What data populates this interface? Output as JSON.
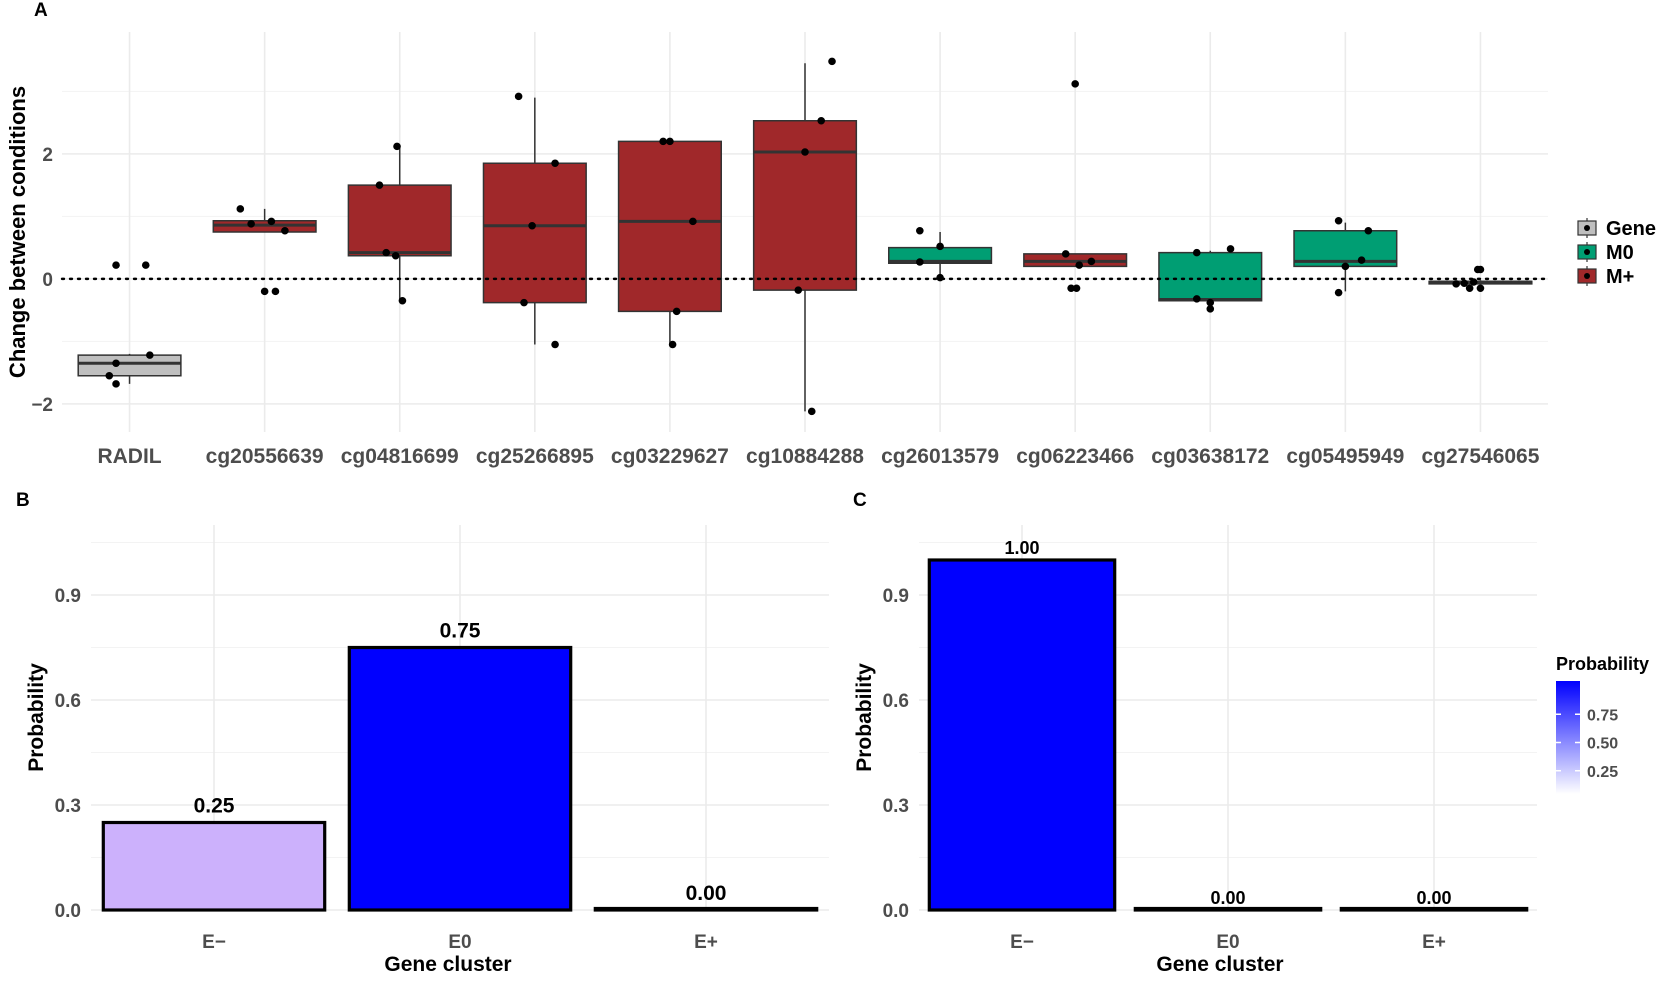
{
  "panel_labels": {
    "a": "A",
    "b": "B",
    "c": "C"
  },
  "colors": {
    "gene_fill": "#bfbfbf",
    "m0_fill": "#009e73",
    "mplus_fill": "#a0282a",
    "point": "#000000",
    "prob_high": "#0000ff",
    "prob_low": "#ffffff"
  },
  "chart_data": [
    {
      "id": "A",
      "type": "boxplot",
      "title": "",
      "xlabel": "",
      "ylabel": "Change between conditions",
      "ylim": [
        -2.45,
        3.95
      ],
      "yticks": [
        -2,
        0,
        2
      ],
      "ytick_labels": [
        "−2",
        "0",
        "2"
      ],
      "reference_line": 0,
      "legend": {
        "position": "right",
        "items": [
          {
            "label": "Gene",
            "key": "gene"
          },
          {
            "label": "M0",
            "key": "m0"
          },
          {
            "label": "M+",
            "key": "mplus"
          }
        ]
      },
      "boxes": [
        {
          "category": "RADIL",
          "group": "gene",
          "whisker_low": -1.68,
          "q1": -1.55,
          "median": -1.35,
          "q3": -1.22,
          "whisker_high": -1.2,
          "points": [
            [
              -0.1,
              0.22
            ],
            [
              0.12,
              0.22
            ],
            [
              -0.15,
              -1.55
            ],
            [
              -0.1,
              -1.68
            ],
            [
              -0.1,
              -1.35
            ],
            [
              0.15,
              -1.22
            ]
          ]
        },
        {
          "category": "cg20556639",
          "group": "mplus",
          "whisker_low": 0.75,
          "q1": 0.75,
          "median": 0.86,
          "q3": 0.93,
          "whisker_high": 1.12,
          "points": [
            [
              -0.18,
              1.12
            ],
            [
              -0.1,
              0.88
            ],
            [
              0.05,
              0.92
            ],
            [
              0.15,
              0.77
            ],
            [
              0,
              -0.2
            ],
            [
              0.08,
              -0.2
            ]
          ]
        },
        {
          "category": "cg04816699",
          "group": "mplus",
          "whisker_low": -0.35,
          "q1": 0.37,
          "median": 0.42,
          "q3": 1.5,
          "whisker_high": 2.12,
          "points": [
            [
              -0.15,
              1.5
            ],
            [
              -0.1,
              0.42
            ],
            [
              -0.03,
              0.37
            ],
            [
              -0.02,
              2.12
            ],
            [
              0.02,
              -0.35
            ]
          ]
        },
        {
          "category": "cg25266895",
          "group": "mplus",
          "whisker_low": -1.05,
          "q1": -0.38,
          "median": 0.85,
          "q3": 1.85,
          "whisker_high": 2.9,
          "points": [
            [
              -0.12,
              2.92
            ],
            [
              0.15,
              1.85
            ],
            [
              -0.02,
              0.85
            ],
            [
              -0.08,
              -0.38
            ],
            [
              0.15,
              -1.05
            ]
          ]
        },
        {
          "category": "cg03229627",
          "group": "mplus",
          "whisker_low": -1.05,
          "q1": -0.52,
          "median": 0.92,
          "q3": 2.2,
          "whisker_high": 2.2,
          "points": [
            [
              -0.05,
              2.2
            ],
            [
              0,
              2.2
            ],
            [
              0.17,
              0.92
            ],
            [
              0.05,
              -0.52
            ],
            [
              0.02,
              -1.05
            ]
          ]
        },
        {
          "category": "cg10884288",
          "group": "mplus",
          "whisker_low": -2.12,
          "q1": -0.18,
          "median": 2.03,
          "q3": 2.53,
          "whisker_high": 3.45,
          "points": [
            [
              0.2,
              3.48
            ],
            [
              0.12,
              2.53
            ],
            [
              0,
              2.03
            ],
            [
              -0.05,
              -0.18
            ],
            [
              0.05,
              -2.12
            ]
          ]
        },
        {
          "category": "cg26013579",
          "group": "m0",
          "whisker_low": 0.02,
          "q1": 0.25,
          "median": 0.28,
          "q3": 0.5,
          "whisker_high": 0.75,
          "points": [
            [
              -0.15,
              0.77
            ],
            [
              0,
              0.52
            ],
            [
              -0.15,
              0.27
            ],
            [
              0,
              0.02
            ]
          ]
        },
        {
          "category": "cg06223466",
          "group": "mplus",
          "whisker_low": 0.2,
          "q1": 0.2,
          "median": 0.28,
          "q3": 0.4,
          "whisker_high": 0.4,
          "points": [
            [
              0,
              3.12
            ],
            [
              -0.07,
              0.4
            ],
            [
              0.12,
              0.28
            ],
            [
              0.03,
              0.22
            ],
            [
              -0.03,
              -0.15
            ],
            [
              0.01,
              -0.15
            ]
          ]
        },
        {
          "category": "cg03638172",
          "group": "m0",
          "whisker_low": -0.47,
          "q1": -0.35,
          "median": -0.33,
          "q3": 0.42,
          "whisker_high": 0.45,
          "points": [
            [
              -0.1,
              0.42
            ],
            [
              0.15,
              0.48
            ],
            [
              -0.1,
              -0.32
            ],
            [
              0,
              -0.38
            ],
            [
              0,
              -0.48
            ]
          ]
        },
        {
          "category": "cg05495949",
          "group": "m0",
          "whisker_low": -0.2,
          "q1": 0.2,
          "median": 0.28,
          "q3": 0.77,
          "whisker_high": 0.9,
          "points": [
            [
              -0.05,
              0.93
            ],
            [
              0.17,
              0.77
            ],
            [
              0.12,
              0.3
            ],
            [
              0,
              0.2
            ],
            [
              -0.05,
              -0.22
            ]
          ]
        },
        {
          "category": "cg27546065",
          "group": "mplus",
          "whisker_low": -0.08,
          "q1": -0.08,
          "median": -0.05,
          "q3": -0.04,
          "whisker_high": -0.02,
          "points": [
            [
              -0.18,
              -0.08
            ],
            [
              -0.12,
              -0.07
            ],
            [
              -0.08,
              -0.15
            ],
            [
              -0.05,
              -0.05
            ],
            [
              -0.02,
              0.15
            ],
            [
              0,
              0.15
            ],
            [
              0,
              -0.15
            ]
          ]
        }
      ]
    },
    {
      "id": "B",
      "type": "bar",
      "title": "",
      "xlabel": "Gene cluster",
      "ylabel": "Probability",
      "ylim": [
        0,
        1.1
      ],
      "yticks": [
        0.0,
        0.3,
        0.6,
        0.9
      ],
      "ytick_labels": [
        "0.0",
        "0.3",
        "0.6",
        "0.9"
      ],
      "categories": [
        "E−",
        "E0",
        "E+"
      ],
      "values": [
        0.25,
        0.75,
        0.0
      ],
      "data_labels": [
        "0.25",
        "0.75",
        "0.00"
      ]
    },
    {
      "id": "C",
      "type": "bar",
      "title": "",
      "xlabel": "Gene cluster",
      "ylabel": "Probability",
      "ylim": [
        0,
        1.1
      ],
      "yticks": [
        0.0,
        0.3,
        0.6,
        0.9
      ],
      "ytick_labels": [
        "0.0",
        "0.3",
        "0.6",
        "0.9"
      ],
      "categories": [
        "E−",
        "E0",
        "E+"
      ],
      "values": [
        1.0,
        0.0,
        0.0
      ],
      "data_labels": [
        "1.00",
        "0.00",
        "0.00"
      ],
      "legend": {
        "title": "Probability",
        "position": "right",
        "range": [
          0,
          1.0
        ],
        "ticks": [
          0.25,
          0.5,
          0.75
        ],
        "tick_labels": [
          "0.25",
          "0.50",
          "0.75"
        ]
      }
    }
  ]
}
